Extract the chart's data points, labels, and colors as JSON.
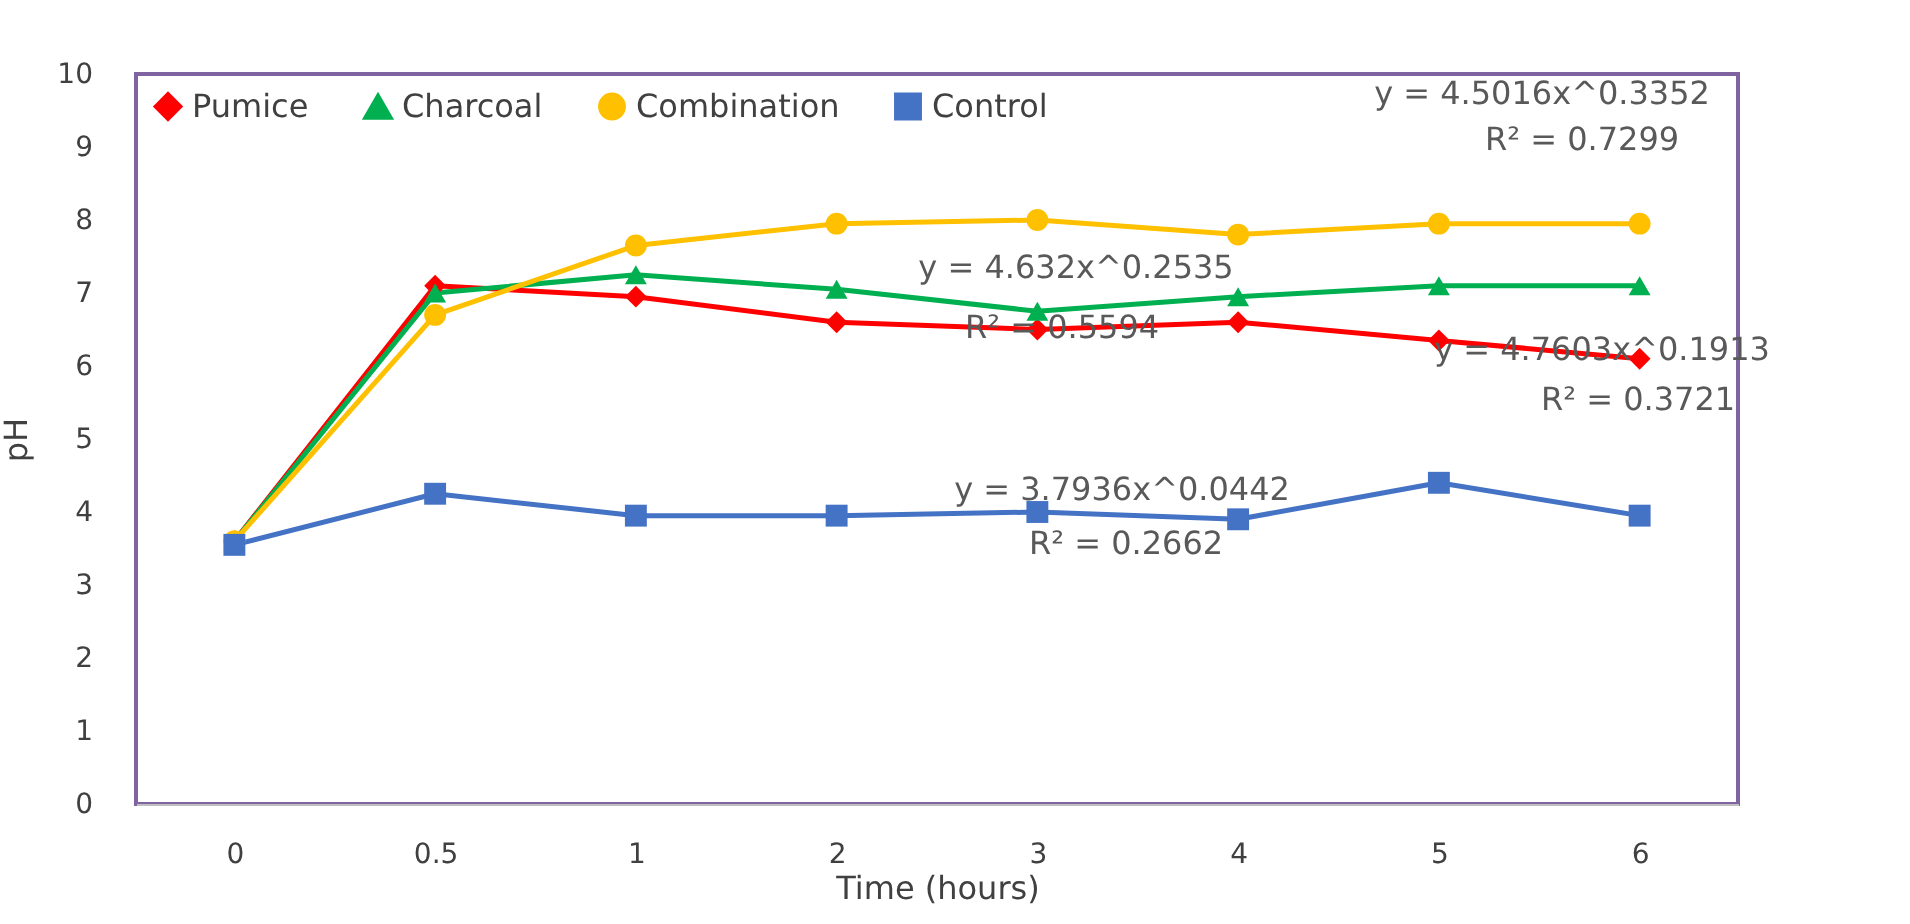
{
  "chart_data": {
    "type": "line",
    "xlabel": "Time (hours)",
    "ylabel": "pH",
    "categories": [
      "0",
      "0.5",
      "1",
      "2",
      "3",
      "4",
      "5",
      "6"
    ],
    "series": [
      {
        "name": "Pumice",
        "color": "#ff0000",
        "marker": "diamond",
        "values": [
          3.6,
          7.1,
          6.95,
          6.6,
          6.5,
          6.6,
          6.35,
          6.1
        ]
      },
      {
        "name": "Charcoal",
        "color": "#00b050",
        "marker": "triangle",
        "values": [
          3.6,
          7.0,
          7.25,
          7.05,
          6.75,
          6.95,
          7.1,
          7.1
        ]
      },
      {
        "name": "Combination",
        "color": "#ffc000",
        "marker": "circle",
        "values": [
          3.6,
          6.7,
          7.65,
          7.95,
          8.0,
          7.8,
          7.95,
          7.95
        ]
      },
      {
        "name": "Control",
        "color": "#4472c4",
        "marker": "square",
        "values": [
          3.55,
          4.25,
          3.95,
          3.95,
          4.0,
          3.9,
          4.4,
          3.95
        ]
      }
    ],
    "ylim": [
      0,
      10
    ],
    "yticks": [
      0,
      1,
      2,
      3,
      4,
      5,
      6,
      7,
      8,
      9,
      10
    ],
    "grid": false,
    "legend": "top left",
    "line_style": "solid",
    "annotations": [
      "y = 4.5016x^0.3352",
      "R² = 0.7299",
      "y = 4.632x^0.2535",
      "R² = 0.5594",
      "y = 4.7603x^0.1913",
      "R² = 0.3721",
      "y = 3.7936x^0.0442",
      "R² = 0.2662"
    ]
  }
}
